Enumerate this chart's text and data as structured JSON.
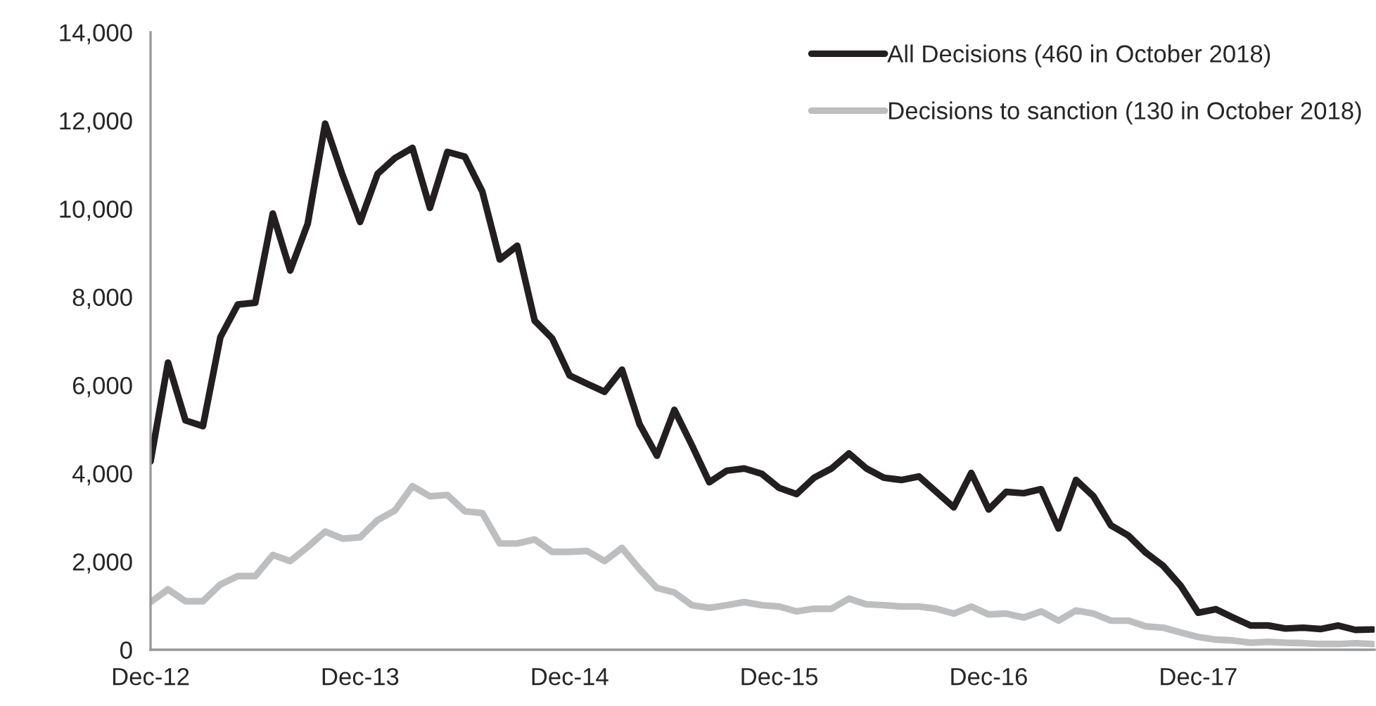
{
  "chart_data": {
    "type": "line",
    "categories": [
      "Dec-12",
      null,
      null,
      null,
      null,
      null,
      null,
      null,
      null,
      null,
      null,
      null,
      "Dec-13",
      null,
      null,
      null,
      null,
      null,
      null,
      null,
      null,
      null,
      null,
      null,
      "Dec-14",
      null,
      null,
      null,
      null,
      null,
      null,
      null,
      null,
      null,
      null,
      null,
      "Dec-15",
      null,
      null,
      null,
      null,
      null,
      null,
      null,
      null,
      null,
      null,
      null,
      "Dec-16",
      null,
      null,
      null,
      null,
      null,
      null,
      null,
      null,
      null,
      null,
      null,
      "Dec-17",
      null,
      null,
      null,
      null,
      null,
      null,
      null,
      null,
      null,
      null
    ],
    "series": [
      {
        "name": "All Decisions (460 in October 2018)",
        "color": "#231f20",
        "values": [
          4270,
          6510,
          5200,
          5070,
          7090,
          7830,
          7870,
          9890,
          8600,
          9660,
          11930,
          10760,
          9700,
          10790,
          11150,
          11380,
          10020,
          11290,
          11180,
          10390,
          8850,
          9160,
          7460,
          7060,
          6220,
          6030,
          5850,
          6350,
          5120,
          4400,
          5440,
          4640,
          3800,
          4060,
          4110,
          3990,
          3670,
          3530,
          3900,
          4110,
          4450,
          4110,
          3900,
          3850,
          3930,
          3580,
          3230,
          4010,
          3180,
          3580,
          3550,
          3640,
          2750,
          3850,
          3480,
          2820,
          2590,
          2200,
          1900,
          1450,
          840,
          920,
          730,
          550,
          550,
          480,
          500,
          470,
          550,
          450,
          460
        ]
      },
      {
        "name": "Decisions to sanction (130 in October 2018)",
        "color": "#bcbec0",
        "values": [
          1080,
          1370,
          1100,
          1100,
          1480,
          1670,
          1670,
          2150,
          2010,
          2330,
          2680,
          2520,
          2550,
          2940,
          3160,
          3710,
          3480,
          3510,
          3140,
          3100,
          2410,
          2410,
          2500,
          2220,
          2220,
          2240,
          2010,
          2310,
          1830,
          1400,
          1300,
          1010,
          950,
          1010,
          1080,
          1010,
          980,
          870,
          930,
          930,
          1160,
          1030,
          1010,
          980,
          980,
          930,
          820,
          980,
          800,
          820,
          730,
          870,
          660,
          890,
          820,
          660,
          660,
          530,
          500,
          390,
          290,
          230,
          210,
          160,
          180,
          160,
          150,
          130,
          130,
          150,
          130
        ]
      }
    ],
    "ylim": [
      0,
      14000
    ],
    "yticks": [
      0,
      {
        "value": 2000,
        "label": "2,000"
      },
      {
        "value": 4000,
        "label": "4,000"
      },
      {
        "value": 6000,
        "label": "6,000"
      },
      {
        "value": 8000,
        "label": "8,000"
      },
      {
        "value": 10000,
        "label": "10,000"
      },
      {
        "value": 12000,
        "label": "12,000"
      },
      {
        "value": 14000,
        "label": "14,000"
      }
    ],
    "legend": "top right",
    "grid": false,
    "line_style": "solid",
    "marker": "none"
  }
}
